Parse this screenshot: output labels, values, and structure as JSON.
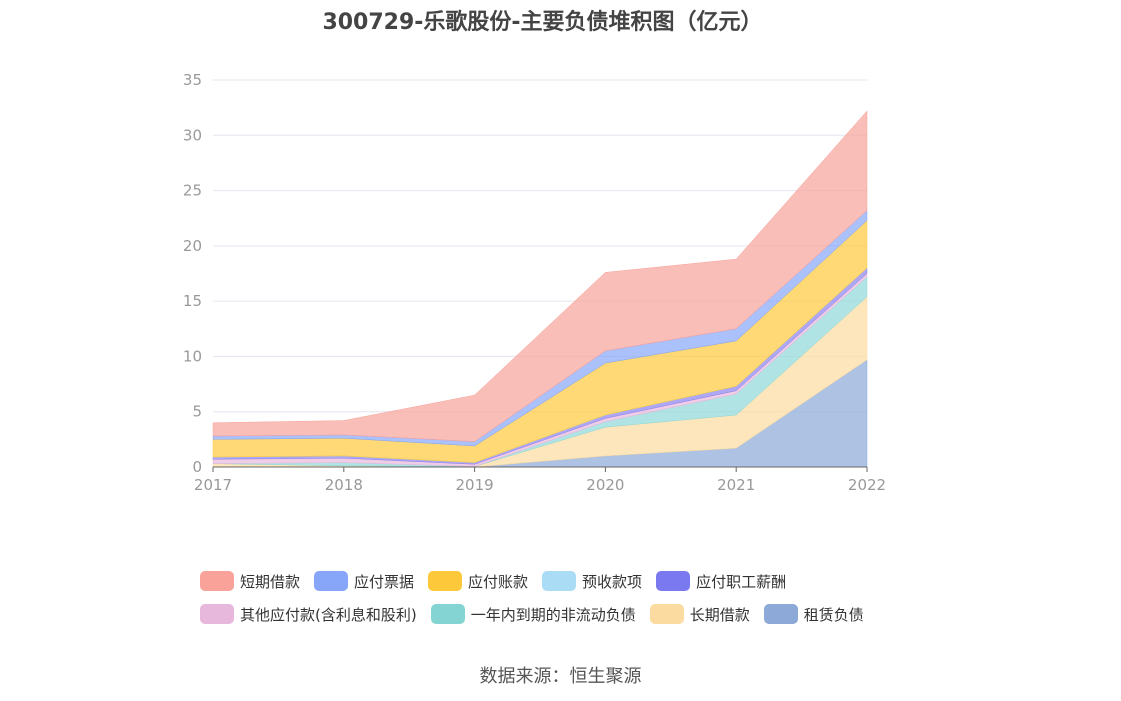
{
  "chart_data": {
    "type": "area",
    "title": "300729-乐歌股份-主要负债堆积图（亿元）",
    "categories": [
      "2017",
      "2018",
      "2019",
      "2020",
      "2021",
      "2022"
    ],
    "y_ticks": [
      "0",
      "5",
      "10",
      "15",
      "20",
      "25",
      "30",
      "35"
    ],
    "ylim": [
      0,
      35
    ],
    "stacked": true,
    "grid": true,
    "legend_position": "bottom",
    "series": [
      {
        "name": "租赁负债",
        "color": "#8ca9d8",
        "values": [
          0,
          0,
          0,
          1.0,
          1.7,
          9.7
        ]
      },
      {
        "name": "长期借款",
        "color": "#fcdba0",
        "values": [
          0.3,
          0.1,
          0.05,
          2.6,
          3.0,
          5.7
        ]
      },
      {
        "name": "一年内到期的非流动负债",
        "color": "#8fd8d8",
        "values": [
          0,
          0.3,
          0,
          0.5,
          1.9,
          1.8
        ]
      },
      {
        "name": "其他应付款(含利息和股利)",
        "color": "#e8b8dc",
        "values": [
          0.4,
          0.4,
          0.2,
          0.3,
          0.3,
          0.3
        ]
      },
      {
        "name": "应付职工薪酬",
        "color": "#8a82f0",
        "values": [
          0.2,
          0.2,
          0.15,
          0.3,
          0.4,
          0.5
        ]
      },
      {
        "name": "预收款项",
        "color": "#aadcf5",
        "values": [
          0,
          0,
          0,
          0,
          0,
          0
        ]
      },
      {
        "name": "应付账款",
        "color": "#fdc93a",
        "values": [
          1.6,
          1.6,
          1.5,
          4.7,
          4.1,
          4.3
        ]
      },
      {
        "name": "应付票据",
        "color": "#88a6f9",
        "values": [
          0.3,
          0.3,
          0.4,
          1.1,
          1.1,
          0.9
        ]
      },
      {
        "name": "短期借款",
        "color": "#f8a29a",
        "values": [
          1.2,
          1.3,
          4.2,
          7.1,
          6.3,
          9.0
        ]
      }
    ]
  },
  "legend": {
    "row1": [
      {
        "label": "短期借款",
        "color": "#f8a29a"
      },
      {
        "label": "应付票据",
        "color": "#88a6f9"
      },
      {
        "label": "应付账款",
        "color": "#fdc93a"
      },
      {
        "label": "预收款项",
        "color": "#aadcf5"
      },
      {
        "label": "应付职工薪酬",
        "color": "#7b79f0"
      }
    ],
    "row2": [
      {
        "label": "其他应付款(含利息和股利)",
        "color": "#e8b8dc"
      },
      {
        "label": "一年内到期的非流动负债",
        "color": "#84d4d4"
      },
      {
        "label": "长期借款",
        "color": "#fcdba0"
      },
      {
        "label": "租赁负债",
        "color": "#8ca9d8"
      }
    ]
  },
  "source_text": "数据来源：恒生聚源"
}
